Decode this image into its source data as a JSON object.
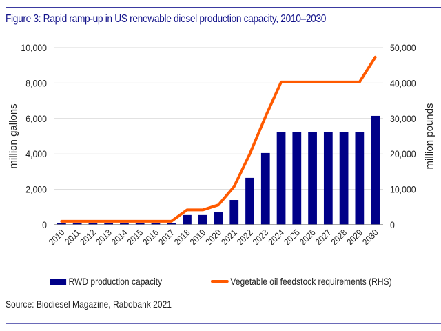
{
  "title": "Figure 3: Rapid ramp-up in US renewable diesel production capacity, 2010–2030",
  "source": "Source: Biodiesel Magazine, Rabobank 2021",
  "colors": {
    "bar": "#000088",
    "line": "#ff5a00",
    "title": "#13138a",
    "grid": "#d9d9d9"
  },
  "chart_data": {
    "type": "bar",
    "title": "Figure 3: Rapid ramp-up in US renewable diesel production capacity, 2010–2030",
    "categories": [
      "2010",
      "2011",
      "2012",
      "2013",
      "2014",
      "2015",
      "2016",
      "2017",
      "2018",
      "2019",
      "2020",
      "2021",
      "2022",
      "2023",
      "2024",
      "2025",
      "2026",
      "2027",
      "2028",
      "2029",
      "2030"
    ],
    "series": [
      {
        "name": "RWD production capacity",
        "type": "bar",
        "axis": "left",
        "values": [
          100,
          100,
          100,
          100,
          100,
          100,
          100,
          100,
          550,
          550,
          700,
          1400,
          2650,
          4050,
          5250,
          5250,
          5250,
          5250,
          5250,
          5250,
          6150
        ]
      },
      {
        "name": "Vegetable oil feedstock requirements (RHS)",
        "type": "line",
        "axis": "right",
        "values": [
          1000,
          1000,
          1000,
          1000,
          1000,
          1000,
          1000,
          1000,
          4200,
          4200,
          5600,
          10800,
          20000,
          30500,
          40300,
          40300,
          40300,
          40300,
          40300,
          40300,
          47300
        ]
      }
    ],
    "ylabel": "million gallons",
    "ylabel_right": "million pounds",
    "ylim": [
      0,
      10000
    ],
    "ylim_right": [
      0,
      50000
    ],
    "yticks": [
      "0",
      "2,000",
      "4,000",
      "6,000",
      "8,000",
      "10,000"
    ],
    "yticks_right": [
      "0",
      "10,000",
      "20,000",
      "30,000",
      "40,000",
      "50,000"
    ],
    "grid": true,
    "legend": "bottom"
  }
}
